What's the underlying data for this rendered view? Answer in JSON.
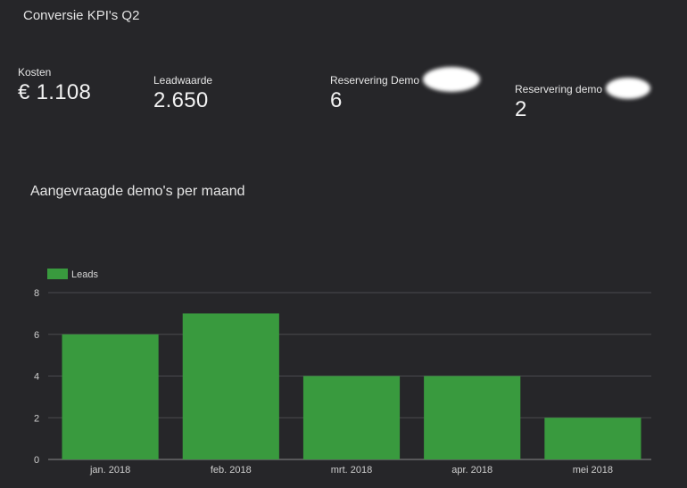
{
  "page_title": "Conversie KPI's Q2",
  "kpis": [
    {
      "label": "Kosten",
      "value": "€ 1.108"
    },
    {
      "label": "Leadwaarde",
      "value": "2.650"
    },
    {
      "label": "Reservering Demo",
      "value": "6"
    },
    {
      "label": "Reservering demo",
      "value": "2"
    }
  ],
  "chart_title": "Aangevraagde demo's  per maand",
  "colors": {
    "bar": "#399a3e",
    "background": "#262629",
    "grid": "#4a4a4e"
  },
  "chart_data": {
    "type": "bar",
    "title": "Aangevraagde demo's  per maand",
    "categories": [
      "jan. 2018",
      "feb. 2018",
      "mrt. 2018",
      "apr. 2018",
      "mei 2018"
    ],
    "series": [
      {
        "name": "Leads",
        "values": [
          6,
          7,
          4,
          4,
          2
        ]
      }
    ],
    "ylim": [
      0,
      8
    ],
    "yticks": [
      0,
      2,
      4,
      6,
      8
    ],
    "grid": true,
    "legend": "top-left"
  }
}
